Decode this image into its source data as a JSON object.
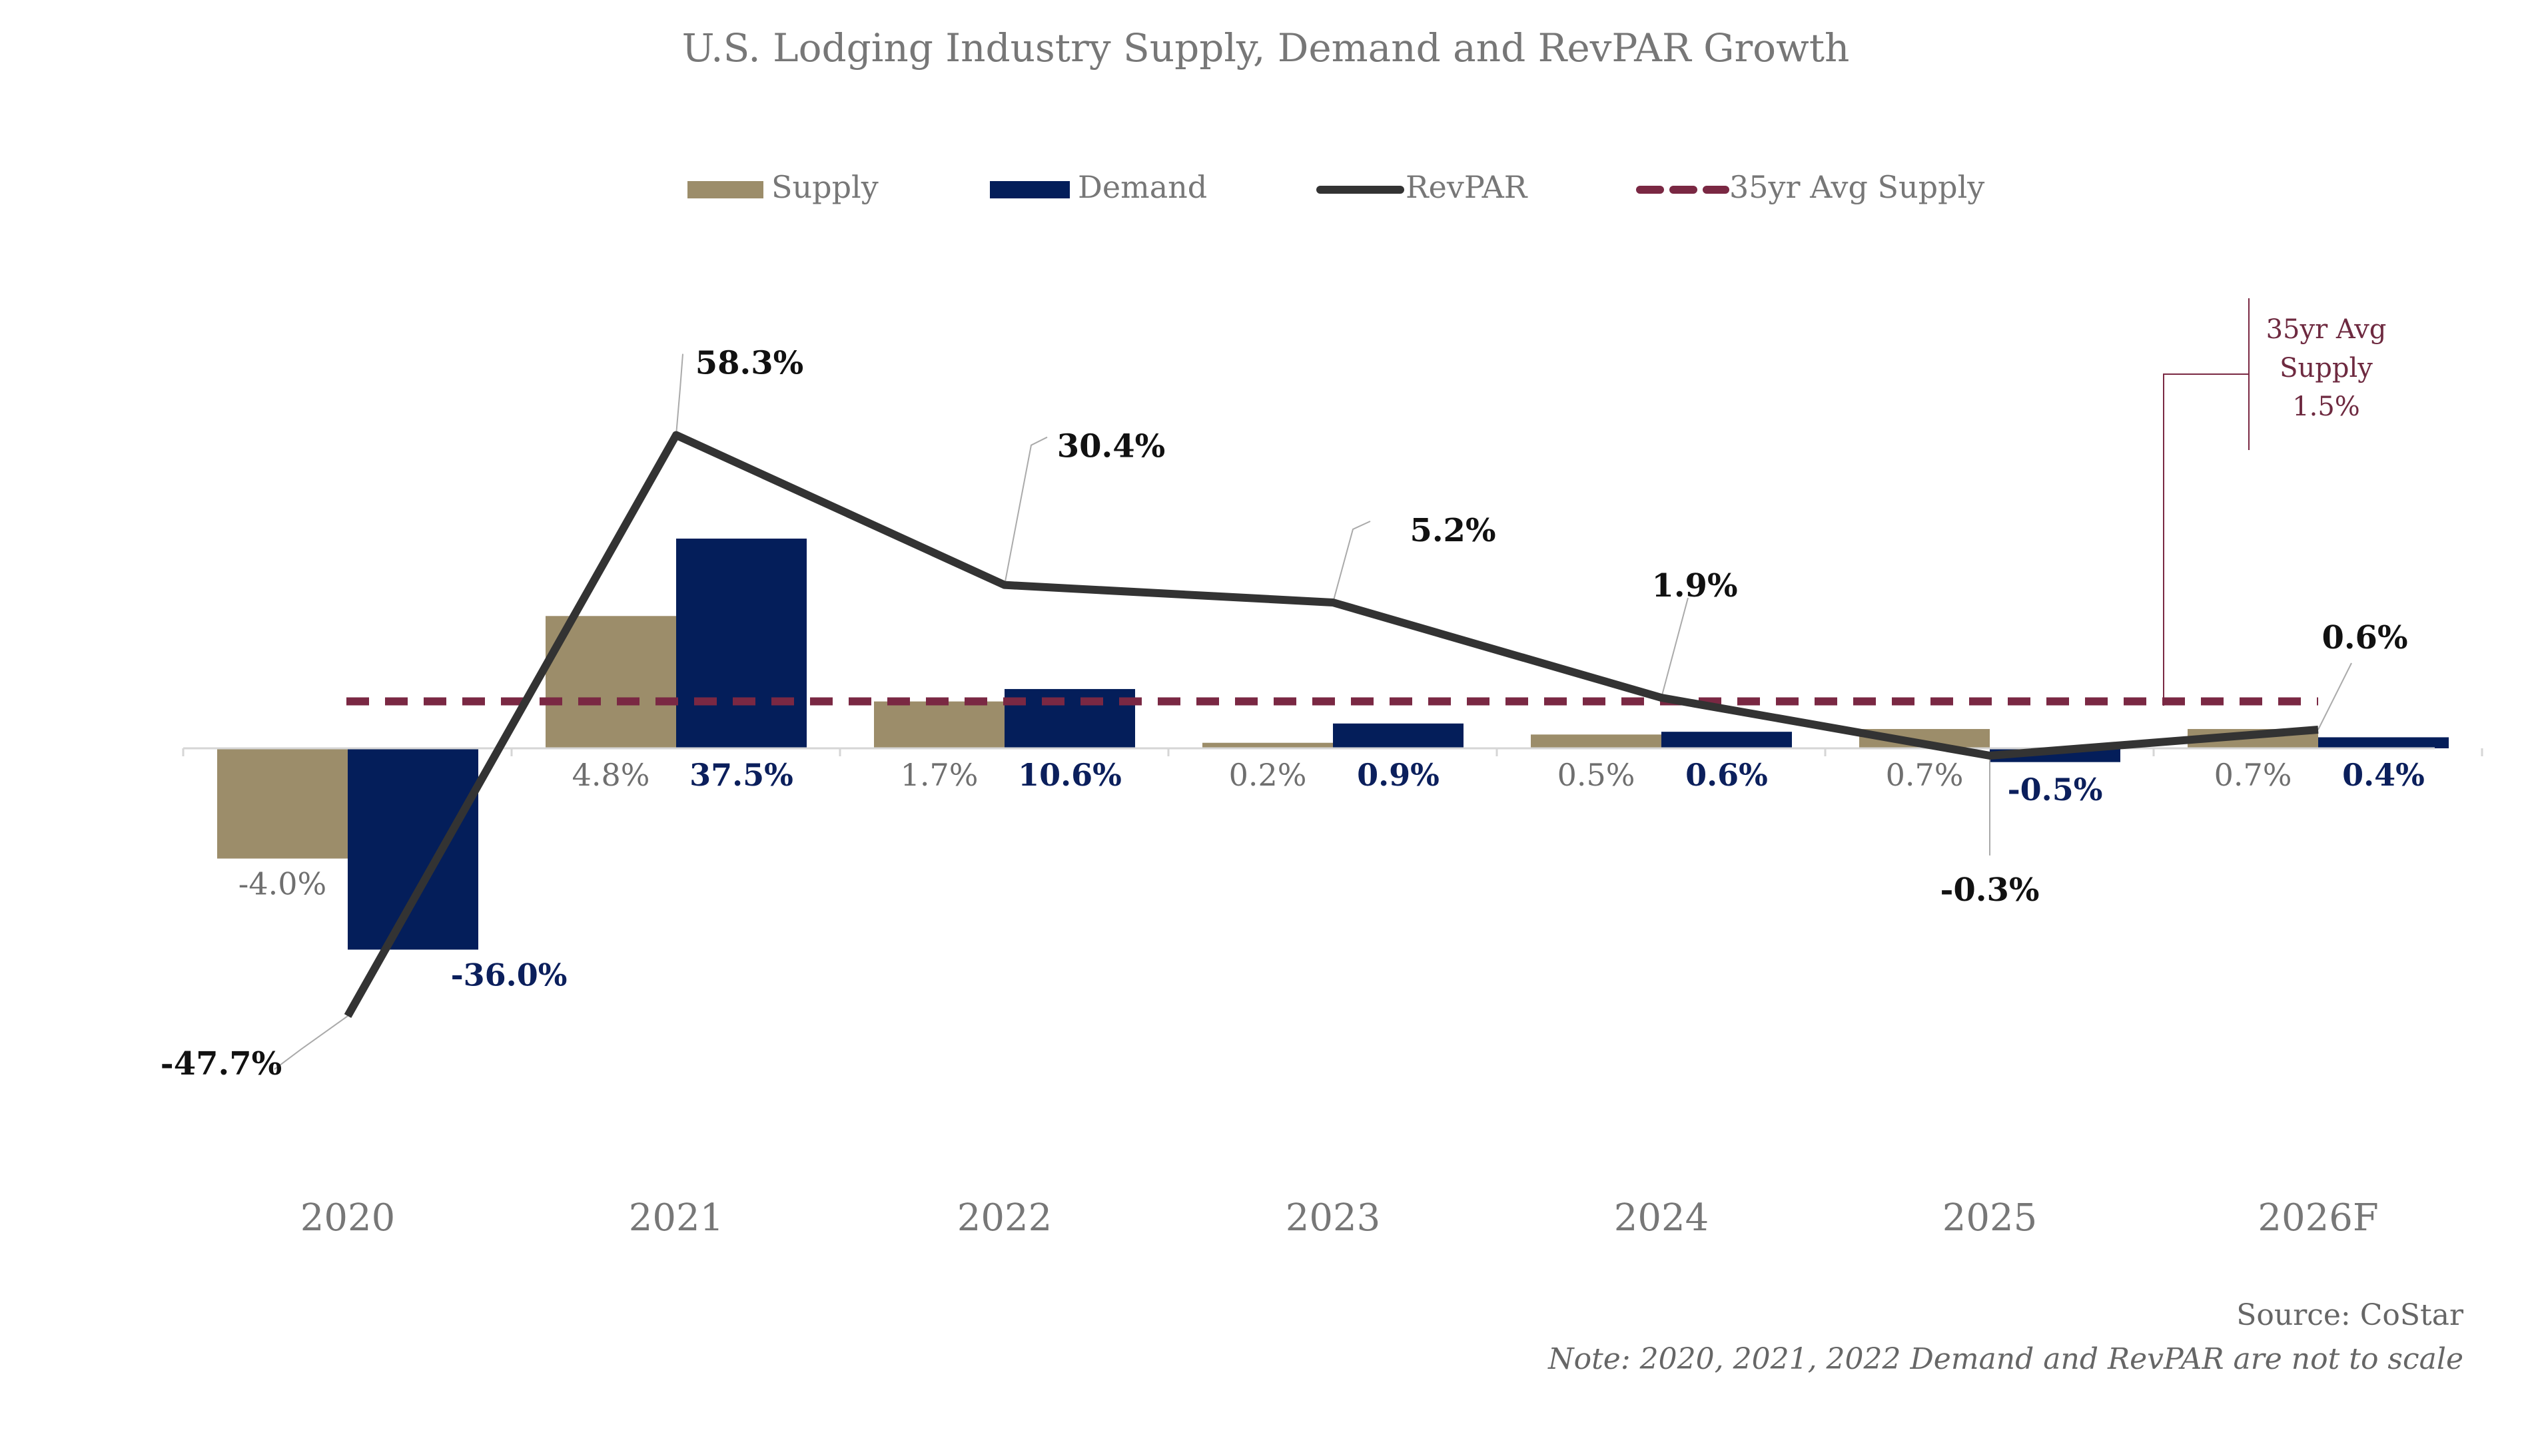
{
  "chart_data": {
    "type": "bar",
    "title": "U.S. Lodging Industry Supply, Demand and RevPAR Growth",
    "categories": [
      "2020",
      "2021",
      "2022",
      "2023",
      "2024",
      "2025",
      "2026F"
    ],
    "series": [
      {
        "name": "Supply",
        "kind": "bar",
        "color": "#9c8d6a",
        "values": [
          -4.0,
          4.8,
          1.7,
          0.2,
          0.5,
          0.7,
          0.7
        ],
        "labels": [
          "-4.0%",
          "4.8%",
          "1.7%",
          "0.2%",
          "0.5%",
          "0.7%",
          "0.7%"
        ]
      },
      {
        "name": "Demand",
        "kind": "bar",
        "color": "#041e5a",
        "values": [
          -36.0,
          37.5,
          10.6,
          0.9,
          0.6,
          -0.5,
          0.4
        ],
        "labels": [
          "-36.0%",
          "37.5%",
          "10.6%",
          "0.9%",
          "0.6%",
          "-0.5%",
          "0.4%"
        ]
      },
      {
        "name": "RevPAR",
        "kind": "line",
        "color": "#333333",
        "values": [
          -47.7,
          58.3,
          30.4,
          5.2,
          1.9,
          -0.3,
          0.6
        ],
        "labels": [
          "-47.7%",
          "58.3%",
          "30.4%",
          "5.2%",
          "1.9%",
          "-0.3%",
          "0.6%"
        ]
      },
      {
        "name": "35yr Avg Supply",
        "kind": "dashed-line",
        "color": "#7a2843",
        "value": 1.5
      }
    ],
    "avg_annotation": {
      "lines": [
        "35yr Avg",
        "Supply",
        "1.5%"
      ]
    },
    "source": "Source: CoStar",
    "note": "Note: 2020, 2021, 2022 Demand and RevPAR are not to scale"
  }
}
